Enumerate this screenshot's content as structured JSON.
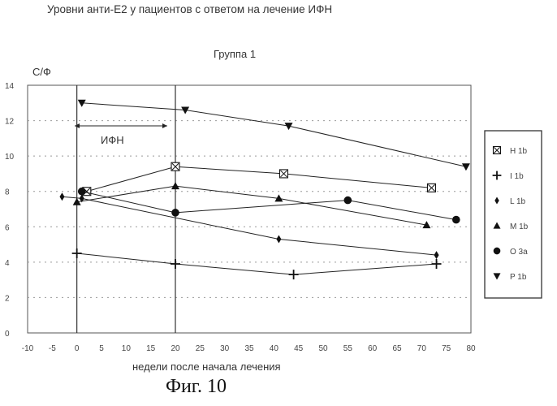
{
  "document": {
    "title": "Уровни анти-Е2 у пациентов с ответом на лечение ИФН",
    "figure_caption": "Фиг. 10"
  },
  "chart_data": {
    "type": "line",
    "title": "Группа 1",
    "xlabel": "недели после начала лечения",
    "ylabel": "С/Ф",
    "xlim": [
      -10,
      80
    ],
    "ylim": [
      0,
      14
    ],
    "x_ticks": [
      "-10",
      "-5",
      "0",
      "5",
      "10",
      "15",
      "20",
      "25",
      "30",
      "35",
      "40",
      "45",
      "50",
      "55",
      "60",
      "65",
      "70",
      "75",
      "80"
    ],
    "y_ticks": [
      "0",
      "2",
      "4",
      "6",
      "8",
      "10",
      "12",
      "14"
    ],
    "grid": true,
    "legend_position": "right",
    "vertical_markers": [
      0,
      20
    ],
    "annotation": {
      "text": "ИФН",
      "x_from": 0,
      "x_to": 20,
      "y": 12
    },
    "series": [
      {
        "name": "H 1b",
        "marker": "boxed-x",
        "points": [
          [
            2,
            8.0
          ],
          [
            20,
            9.4
          ],
          [
            42,
            9.0
          ],
          [
            72,
            8.2
          ]
        ]
      },
      {
        "name": "I 1b",
        "marker": "plus",
        "points": [
          [
            0,
            4.5
          ],
          [
            20,
            3.9
          ],
          [
            44,
            3.3
          ],
          [
            73,
            3.9
          ]
        ]
      },
      {
        "name": "L 1b",
        "marker": "diamond",
        "points": [
          [
            -3,
            7.7
          ],
          [
            1,
            7.6
          ],
          [
            41,
            5.3
          ],
          [
            73,
            4.4
          ]
        ]
      },
      {
        "name": "M 1b",
        "marker": "triangle-up",
        "points": [
          [
            0,
            7.4
          ],
          [
            20,
            8.3
          ],
          [
            41,
            7.6
          ],
          [
            71,
            6.1
          ]
        ]
      },
      {
        "name": "O 3a",
        "marker": "circle",
        "points": [
          [
            1,
            8.0
          ],
          [
            20,
            6.8
          ],
          [
            55,
            7.5
          ],
          [
            77,
            6.4
          ]
        ]
      },
      {
        "name": "P 1b",
        "marker": "triangle-down",
        "points": [
          [
            1,
            13.0
          ],
          [
            22,
            12.6
          ],
          [
            43,
            11.7
          ],
          [
            79,
            9.4
          ]
        ]
      }
    ]
  }
}
